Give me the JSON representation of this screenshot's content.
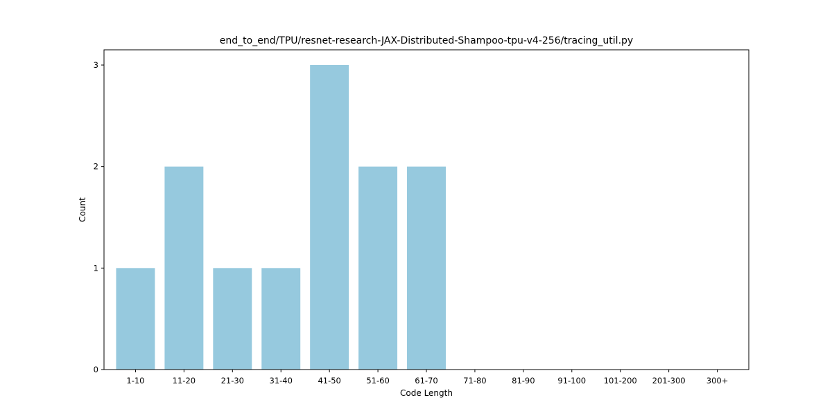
{
  "chart_data": {
    "type": "bar",
    "title": "end_to_end/TPU/resnet-research-JAX-Distributed-Shampoo-tpu-v4-256/tracing_util.py",
    "xlabel": "Code Length",
    "ylabel": "Count",
    "categories": [
      "1-10",
      "11-20",
      "21-30",
      "31-40",
      "41-50",
      "51-60",
      "61-70",
      "71-80",
      "81-90",
      "91-100",
      "101-200",
      "201-300",
      "300+"
    ],
    "values": [
      1,
      2,
      1,
      1,
      3,
      2,
      2,
      0,
      0,
      0,
      0,
      0,
      0
    ],
    "ylim": [
      0,
      3.15
    ],
    "yticks": [
      "0",
      "1",
      "2",
      "3"
    ],
    "bar_color": "#96c9de",
    "grid": false,
    "legend": "none"
  }
}
